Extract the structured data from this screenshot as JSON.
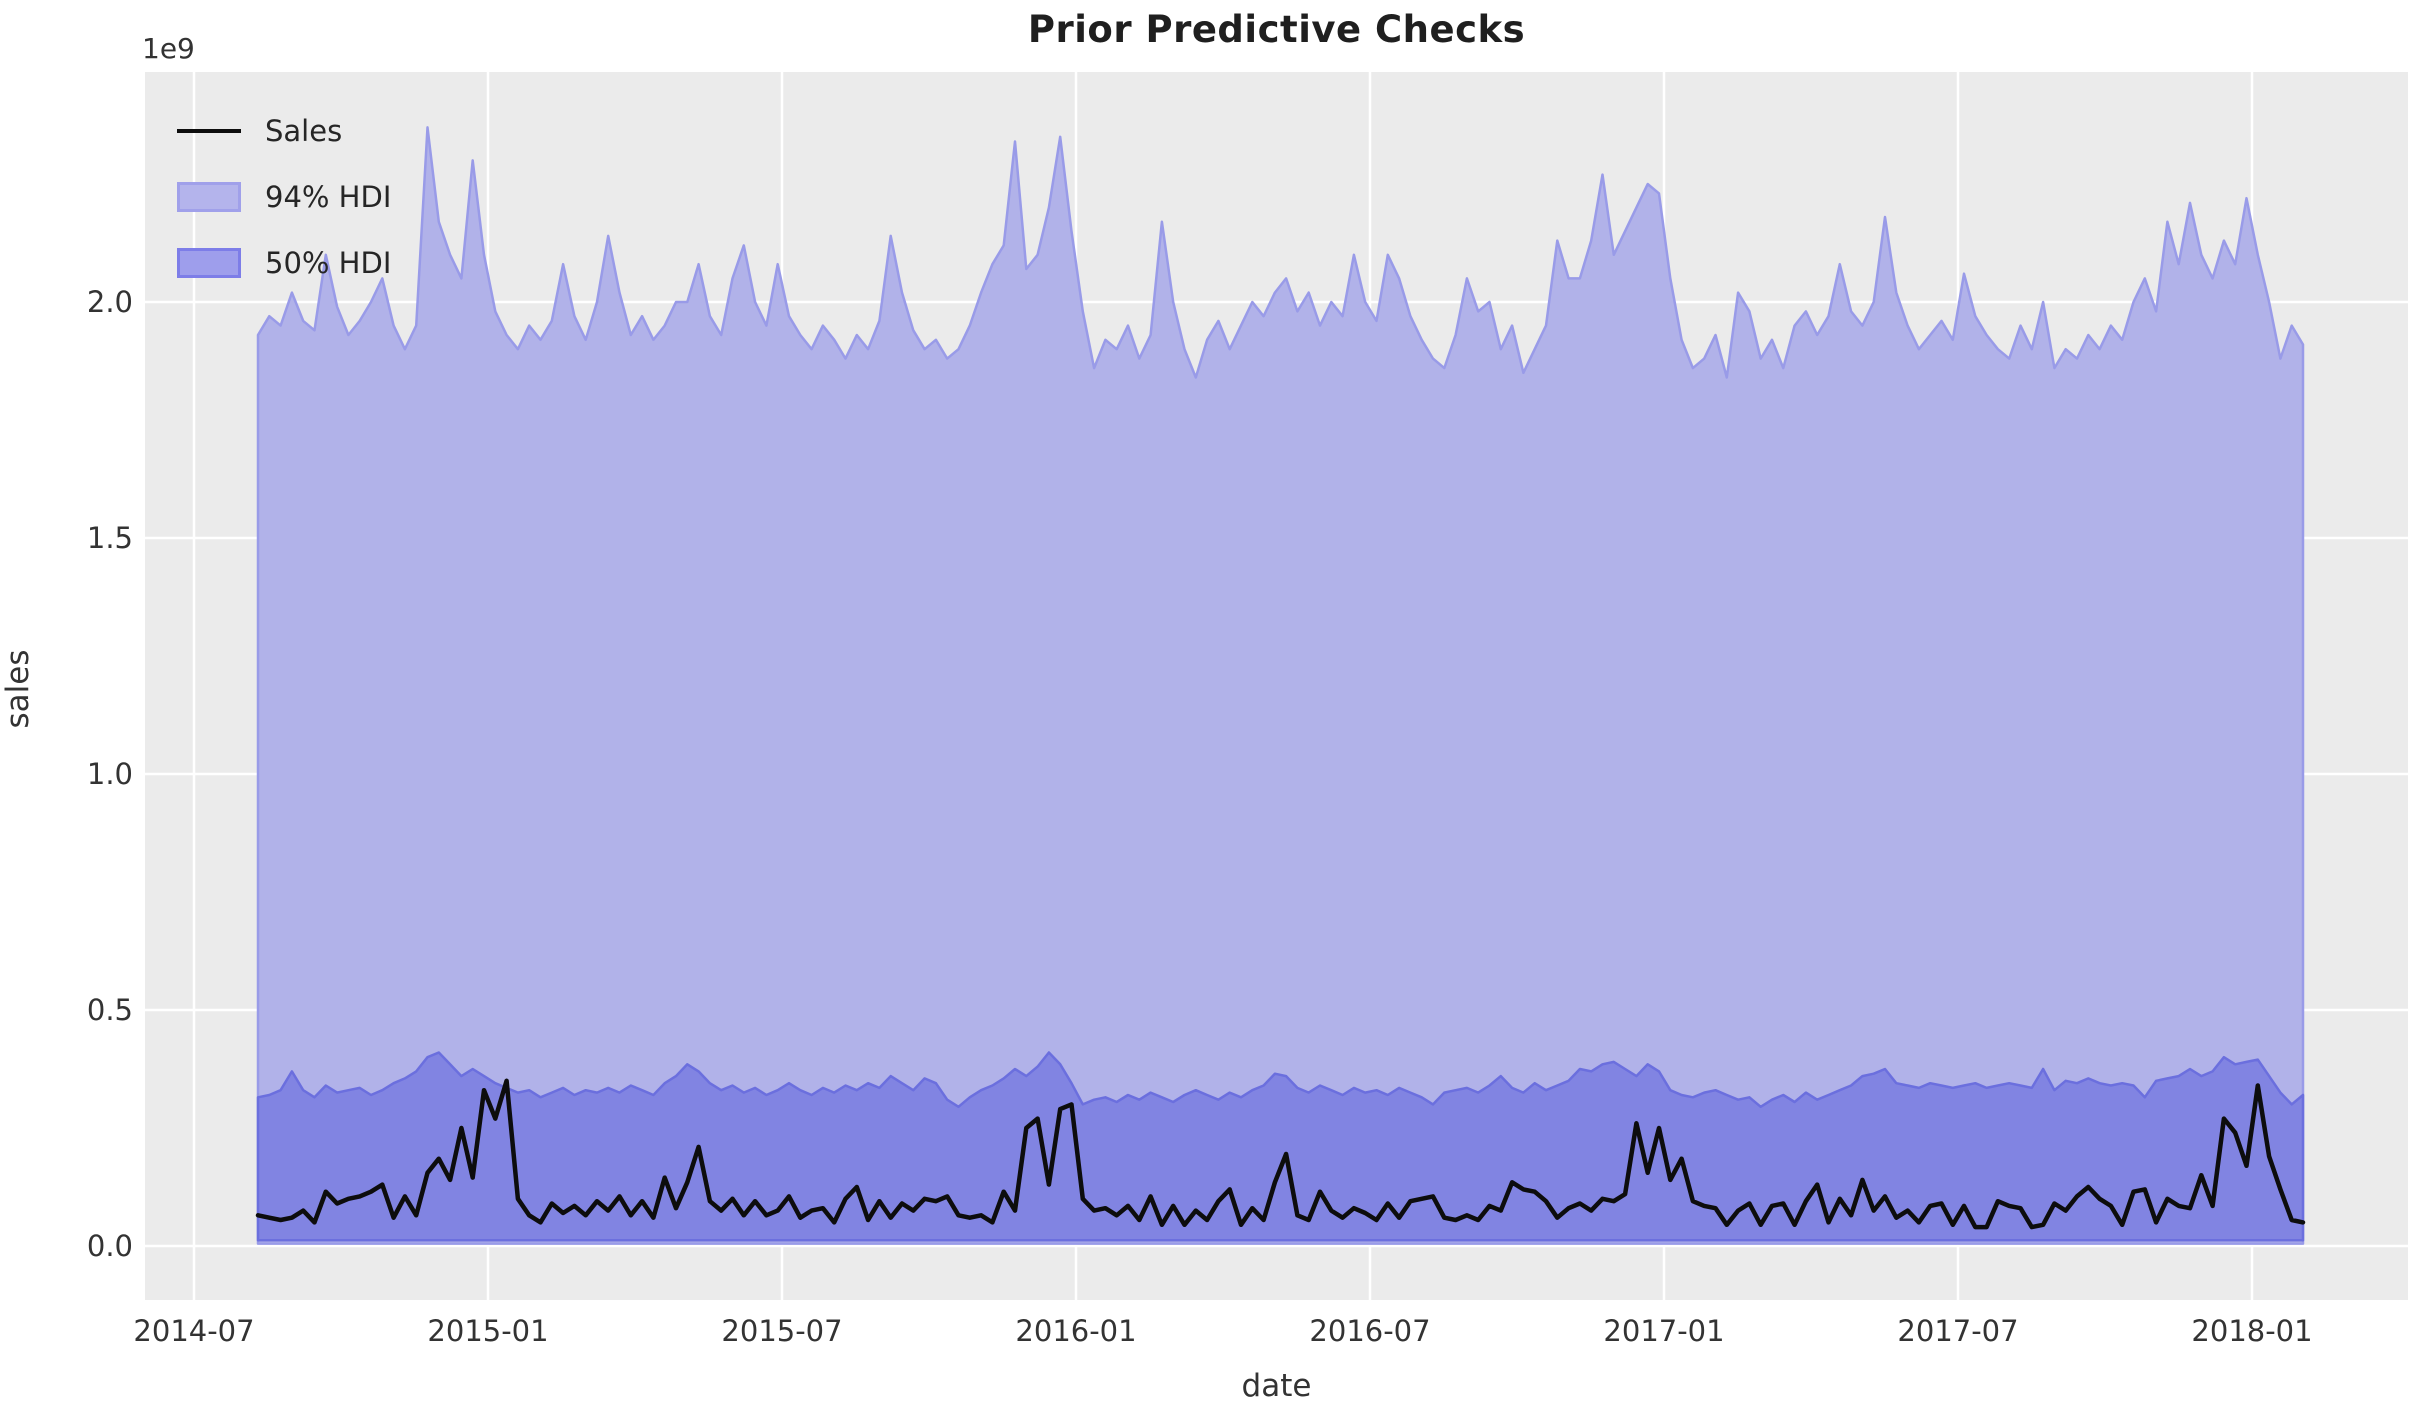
{
  "figure": {
    "title": "Prior Predictive Checks",
    "axis_offset_label": "1e9"
  },
  "axes": {
    "xlabel": "date",
    "ylabel": "sales",
    "x_tick_labels": [
      "2014-07",
      "2015-01",
      "2015-07",
      "2016-01",
      "2016-07",
      "2017-01",
      "2017-07",
      "2018-01"
    ],
    "y_tick_labels": [
      "0.0",
      "0.5",
      "1.0",
      "1.5",
      "2.0"
    ],
    "y_tick_values": [
      0.0,
      0.5,
      1.0,
      1.5,
      2.0
    ]
  },
  "legend": {
    "items": [
      {
        "label": "Sales",
        "type": "line"
      },
      {
        "label": "94% HDI",
        "type": "patch-light"
      },
      {
        "label": "50% HDI",
        "type": "patch-dark"
      }
    ]
  },
  "colors": {
    "figure_bg": "#ffffff",
    "axes_bg": "#ebebeb",
    "grid": "#ffffff",
    "band94_fill": "#b1b2e9",
    "band94_edge": "#999be8",
    "band50_fill": "#8184e2",
    "band50_edge": "#6b6fde",
    "sales_line": "#0d0d0d",
    "text": "#333333",
    "legend_patch_light_fill": "#b4b4ec",
    "legend_patch_light_edge": "#a0a0ea",
    "legend_patch_dark_fill": "#9e9eec",
    "legend_patch_dark_edge": "#7d7de8"
  },
  "chart_data": {
    "type": "area",
    "title": "Prior Predictive Checks",
    "xlabel": "date",
    "ylabel": "sales",
    "y_units": "1e9",
    "ylim": [
      -0.11,
      2.49
    ],
    "x_start": "2014-08-03",
    "x_interval_days": 7,
    "n_points": 182,
    "x_range_shown": [
      "2014-07",
      "2018-01"
    ],
    "grid": true,
    "legend_position": "upper left",
    "hdi94_lower_approx": 0.005,
    "hdi50_lower_approx": 0.012,
    "series": [
      {
        "name": "Sales",
        "values": [
          0.065,
          0.06,
          0.055,
          0.06,
          0.075,
          0.05,
          0.115,
          0.09,
          0.1,
          0.105,
          0.115,
          0.13,
          0.06,
          0.105,
          0.065,
          0.155,
          0.185,
          0.14,
          0.25,
          0.145,
          0.33,
          0.27,
          0.35,
          0.1,
          0.065,
          0.05,
          0.09,
          0.07,
          0.085,
          0.065,
          0.095,
          0.075,
          0.105,
          0.065,
          0.095,
          0.06,
          0.145,
          0.08,
          0.135,
          0.21,
          0.095,
          0.075,
          0.1,
          0.065,
          0.095,
          0.065,
          0.075,
          0.105,
          0.06,
          0.075,
          0.08,
          0.05,
          0.1,
          0.125,
          0.055,
          0.095,
          0.06,
          0.09,
          0.075,
          0.1,
          0.095,
          0.105,
          0.065,
          0.06,
          0.065,
          0.05,
          0.115,
          0.075,
          0.25,
          0.27,
          0.13,
          0.29,
          0.3,
          0.1,
          0.075,
          0.08,
          0.065,
          0.085,
          0.055,
          0.105,
          0.045,
          0.085,
          0.045,
          0.075,
          0.055,
          0.095,
          0.12,
          0.045,
          0.08,
          0.055,
          0.135,
          0.195,
          0.065,
          0.055,
          0.115,
          0.075,
          0.06,
          0.08,
          0.07,
          0.055,
          0.09,
          0.06,
          0.095,
          0.1,
          0.105,
          0.06,
          0.055,
          0.065,
          0.055,
          0.085,
          0.075,
          0.135,
          0.12,
          0.115,
          0.095,
          0.06,
          0.08,
          0.09,
          0.075,
          0.1,
          0.095,
          0.11,
          0.26,
          0.155,
          0.25,
          0.14,
          0.185,
          0.095,
          0.085,
          0.08,
          0.045,
          0.075,
          0.09,
          0.045,
          0.085,
          0.09,
          0.045,
          0.095,
          0.13,
          0.05,
          0.1,
          0.065,
          0.14,
          0.075,
          0.105,
          0.06,
          0.075,
          0.05,
          0.085,
          0.09,
          0.045,
          0.085,
          0.04,
          0.04,
          0.095,
          0.085,
          0.08,
          0.04,
          0.045,
          0.09,
          0.075,
          0.105,
          0.125,
          0.1,
          0.085,
          0.045,
          0.115,
          0.12,
          0.05,
          0.1,
          0.085,
          0.08,
          0.15,
          0.085,
          0.27,
          0.24,
          0.17,
          0.34,
          0.19,
          0.12,
          0.055,
          0.05
        ]
      },
      {
        "name": "94% HDI upper",
        "values": [
          1.93,
          1.97,
          1.95,
          2.02,
          1.96,
          1.94,
          2.1,
          1.99,
          1.93,
          1.96,
          2.0,
          2.05,
          1.95,
          1.9,
          1.95,
          2.37,
          2.17,
          2.1,
          2.05,
          2.3,
          2.1,
          1.98,
          1.93,
          1.9,
          1.95,
          1.92,
          1.96,
          2.08,
          1.97,
          1.92,
          2.0,
          2.14,
          2.02,
          1.93,
          1.97,
          1.92,
          1.95,
          2.0,
          2.0,
          2.08,
          1.97,
          1.93,
          2.05,
          2.12,
          2.0,
          1.95,
          2.08,
          1.97,
          1.93,
          1.9,
          1.95,
          1.92,
          1.88,
          1.93,
          1.9,
          1.96,
          2.14,
          2.02,
          1.94,
          1.9,
          1.92,
          1.88,
          1.9,
          1.95,
          2.02,
          2.08,
          2.12,
          2.34,
          2.07,
          2.1,
          2.2,
          2.35,
          2.15,
          1.98,
          1.86,
          1.92,
          1.9,
          1.95,
          1.88,
          1.93,
          2.17,
          2.0,
          1.9,
          1.84,
          1.92,
          1.96,
          1.9,
          1.95,
          2.0,
          1.97,
          2.02,
          2.05,
          1.98,
          2.02,
          1.95,
          2.0,
          1.97,
          2.1,
          2.0,
          1.96,
          2.1,
          2.05,
          1.97,
          1.92,
          1.88,
          1.86,
          1.93,
          2.05,
          1.98,
          2.0,
          1.9,
          1.95,
          1.85,
          1.9,
          1.95,
          2.13,
          2.05,
          2.05,
          2.13,
          2.27,
          2.1,
          2.15,
          2.2,
          2.25,
          2.23,
          2.05,
          1.92,
          1.86,
          1.88,
          1.93,
          1.84,
          2.02,
          1.98,
          1.88,
          1.92,
          1.86,
          1.95,
          1.98,
          1.93,
          1.97,
          2.08,
          1.98,
          1.95,
          2.0,
          2.18,
          2.02,
          1.95,
          1.9,
          1.93,
          1.96,
          1.92,
          2.06,
          1.97,
          1.93,
          1.9,
          1.88,
          1.95,
          1.9,
          2.0,
          1.86,
          1.9,
          1.88,
          1.93,
          1.9,
          1.95,
          1.92,
          2.0,
          2.05,
          1.98,
          2.17,
          2.08,
          2.21,
          2.1,
          2.05,
          2.13,
          2.08,
          2.22,
          2.1,
          2.0,
          1.88,
          1.95,
          1.91
        ]
      },
      {
        "name": "50% HDI upper",
        "values": [
          0.315,
          0.32,
          0.33,
          0.37,
          0.33,
          0.315,
          0.34,
          0.325,
          0.33,
          0.335,
          0.32,
          0.33,
          0.345,
          0.355,
          0.37,
          0.4,
          0.41,
          0.385,
          0.36,
          0.375,
          0.36,
          0.345,
          0.335,
          0.325,
          0.33,
          0.315,
          0.325,
          0.335,
          0.32,
          0.33,
          0.325,
          0.335,
          0.325,
          0.34,
          0.33,
          0.32,
          0.345,
          0.36,
          0.385,
          0.37,
          0.345,
          0.33,
          0.34,
          0.325,
          0.335,
          0.32,
          0.33,
          0.345,
          0.33,
          0.32,
          0.335,
          0.325,
          0.34,
          0.33,
          0.345,
          0.335,
          0.36,
          0.345,
          0.33,
          0.355,
          0.345,
          0.31,
          0.295,
          0.315,
          0.33,
          0.34,
          0.355,
          0.375,
          0.36,
          0.38,
          0.41,
          0.385,
          0.345,
          0.3,
          0.31,
          0.315,
          0.305,
          0.32,
          0.31,
          0.325,
          0.315,
          0.305,
          0.32,
          0.33,
          0.32,
          0.31,
          0.325,
          0.315,
          0.33,
          0.34,
          0.365,
          0.36,
          0.335,
          0.325,
          0.34,
          0.33,
          0.32,
          0.335,
          0.325,
          0.33,
          0.32,
          0.335,
          0.325,
          0.315,
          0.3,
          0.325,
          0.33,
          0.335,
          0.325,
          0.34,
          0.36,
          0.335,
          0.325,
          0.345,
          0.33,
          0.34,
          0.35,
          0.375,
          0.37,
          0.385,
          0.39,
          0.375,
          0.36,
          0.385,
          0.37,
          0.33,
          0.32,
          0.315,
          0.325,
          0.33,
          0.32,
          0.31,
          0.315,
          0.295,
          0.31,
          0.32,
          0.305,
          0.325,
          0.31,
          0.32,
          0.33,
          0.34,
          0.36,
          0.365,
          0.375,
          0.345,
          0.34,
          0.335,
          0.345,
          0.34,
          0.335,
          0.34,
          0.345,
          0.335,
          0.34,
          0.345,
          0.34,
          0.335,
          0.375,
          0.33,
          0.35,
          0.345,
          0.355,
          0.345,
          0.34,
          0.345,
          0.34,
          0.315,
          0.35,
          0.355,
          0.36,
          0.375,
          0.36,
          0.37,
          0.4,
          0.385,
          0.39,
          0.395,
          0.36,
          0.325,
          0.3,
          0.32
        ]
      }
    ]
  }
}
